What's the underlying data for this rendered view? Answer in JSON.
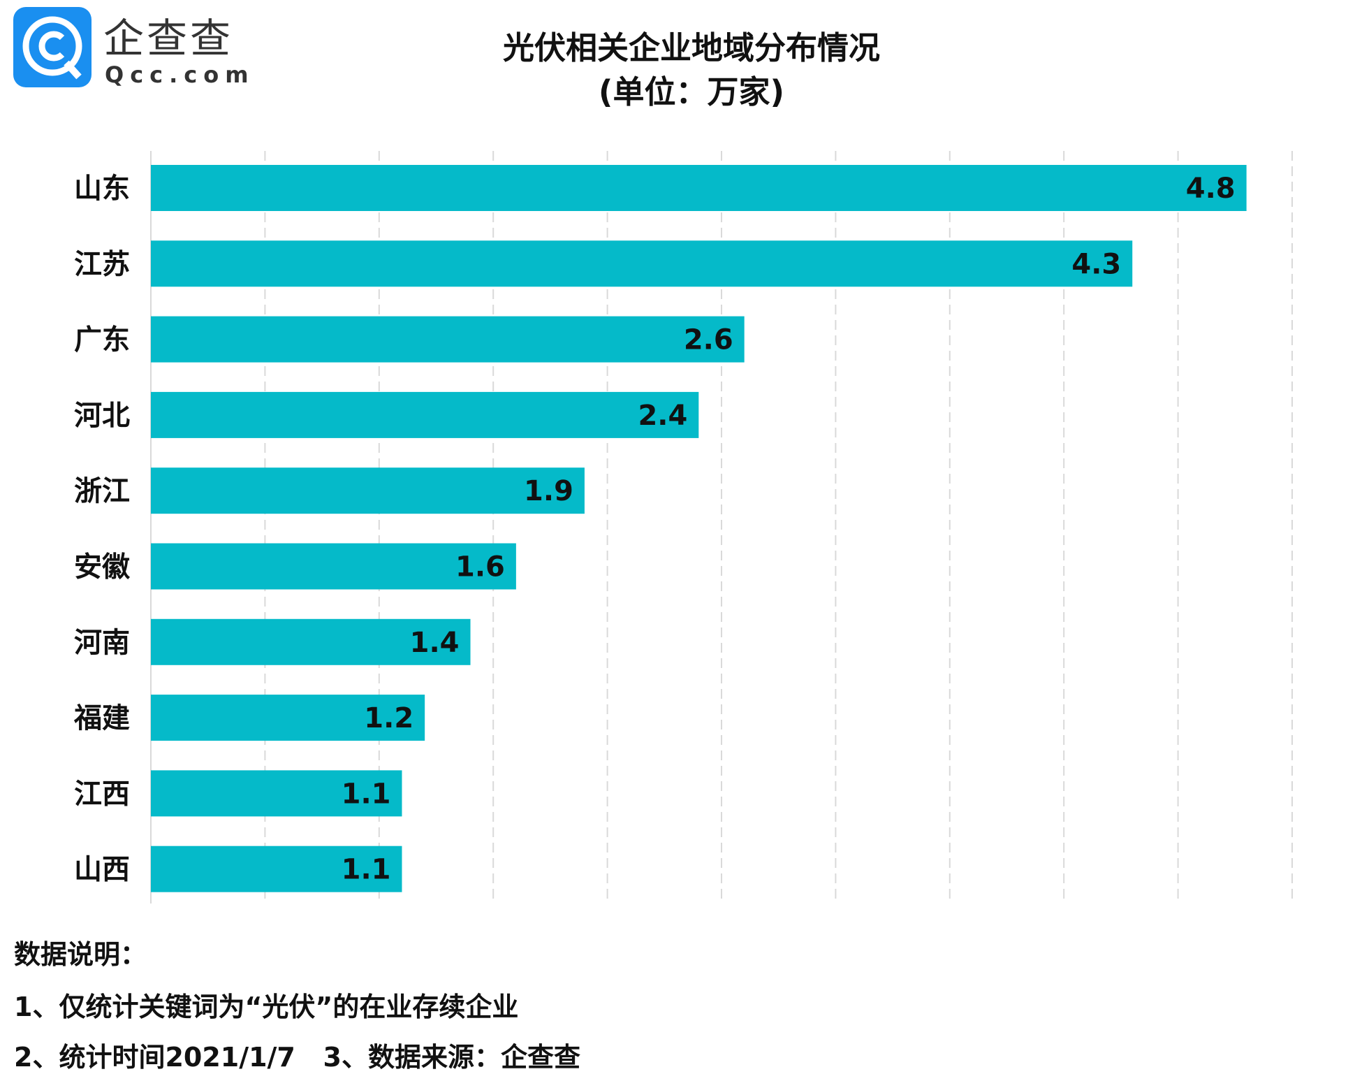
{
  "logo": {
    "brand_cn": "企查查",
    "brand_en": "Qcc.com",
    "color": "#1a8ff0"
  },
  "chart_data": {
    "type": "bar",
    "orientation": "horizontal",
    "title": "光伏相关企业地域分布情况",
    "subtitle": "(单位：万家)",
    "categories": [
      "山东",
      "江苏",
      "广东",
      "河北",
      "浙江",
      "安徽",
      "河南",
      "福建",
      "江西",
      "山西"
    ],
    "values": [
      4.8,
      4.3,
      2.6,
      2.4,
      1.9,
      1.6,
      1.4,
      1.2,
      1.1,
      1.1
    ],
    "xlim": [
      0,
      5
    ],
    "grid": true,
    "bar_color": "#05bac9",
    "data_labels": true
  },
  "notes": {
    "heading": "数据说明：",
    "line1": "1、仅统计关键词为“光伏”的在业存续企业",
    "line2": "2、统计时间2021/1/7   3、数据来源：企查查"
  }
}
